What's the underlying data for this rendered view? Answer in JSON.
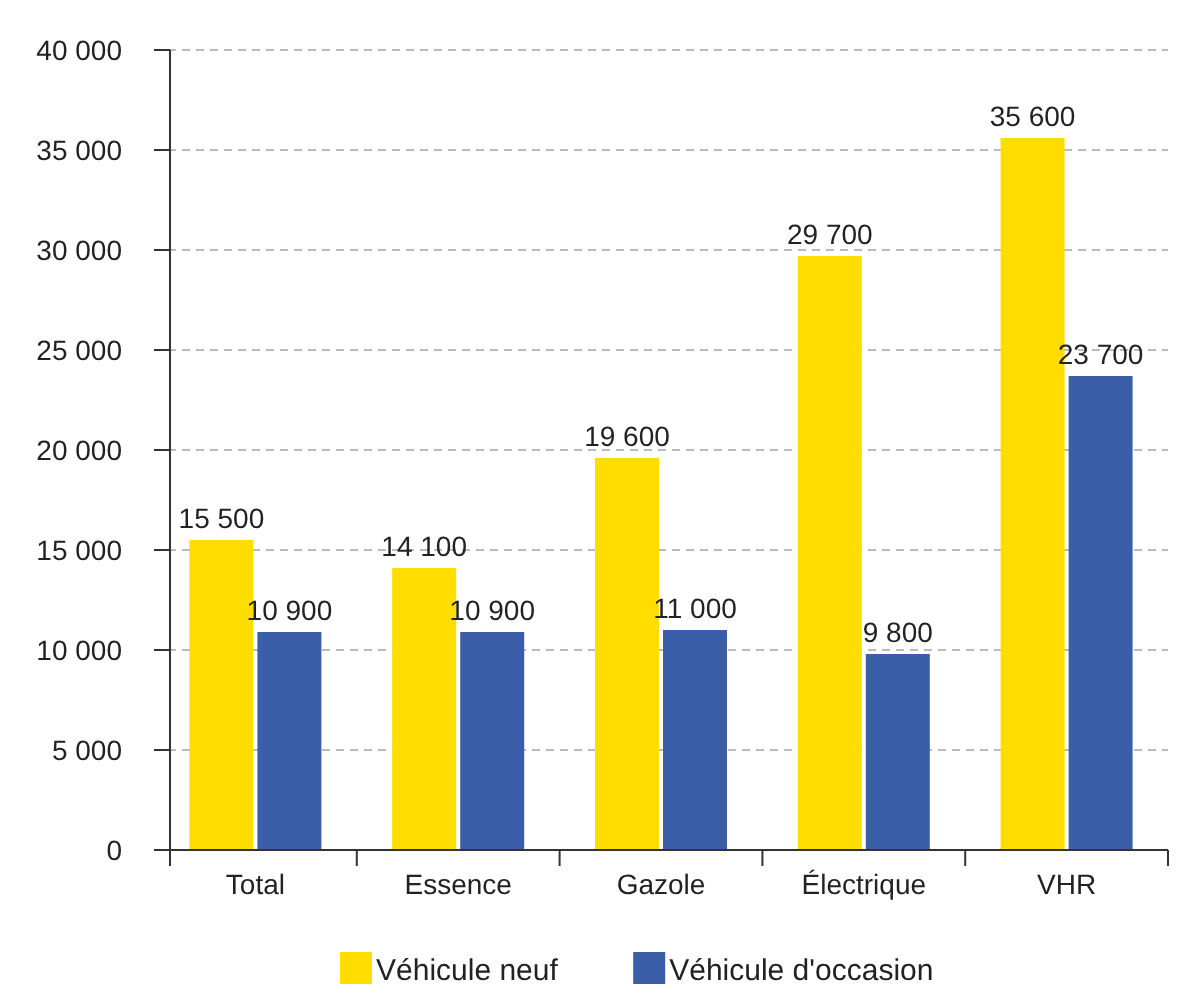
{
  "chart_data": {
    "type": "bar",
    "categories": [
      "Total",
      "Essence",
      "Gazole",
      "Électrique",
      "VHR"
    ],
    "series": [
      {
        "name": "Véhicule neuf",
        "color": "#ffdd00",
        "values": [
          15500,
          14100,
          19600,
          29700,
          35600
        ],
        "value_labels": [
          "15 500",
          "14 100",
          "19 600",
          "29 700",
          "35 600"
        ]
      },
      {
        "name": "Véhicule d'occasion",
        "color": "#3a5fa8",
        "values": [
          10900,
          10900,
          11000,
          9800,
          23700
        ],
        "value_labels": [
          "10 900",
          "10 900",
          "11 000",
          "9 800",
          "23 700"
        ]
      }
    ],
    "ylim": [
      0,
      40000
    ],
    "yticks": [
      {
        "value": 0,
        "label": "0"
      },
      {
        "value": 5000,
        "label": "5 000"
      },
      {
        "value": 10000,
        "label": "10 000"
      },
      {
        "value": 15000,
        "label": "15 000"
      },
      {
        "value": 20000,
        "label": "20 000"
      },
      {
        "value": 25000,
        "label": "25 000"
      },
      {
        "value": 30000,
        "label": "30 000"
      },
      {
        "value": 35000,
        "label": "35 000"
      },
      {
        "value": 40000,
        "label": "40 000"
      }
    ],
    "grid": "y",
    "legend": "bottom"
  }
}
